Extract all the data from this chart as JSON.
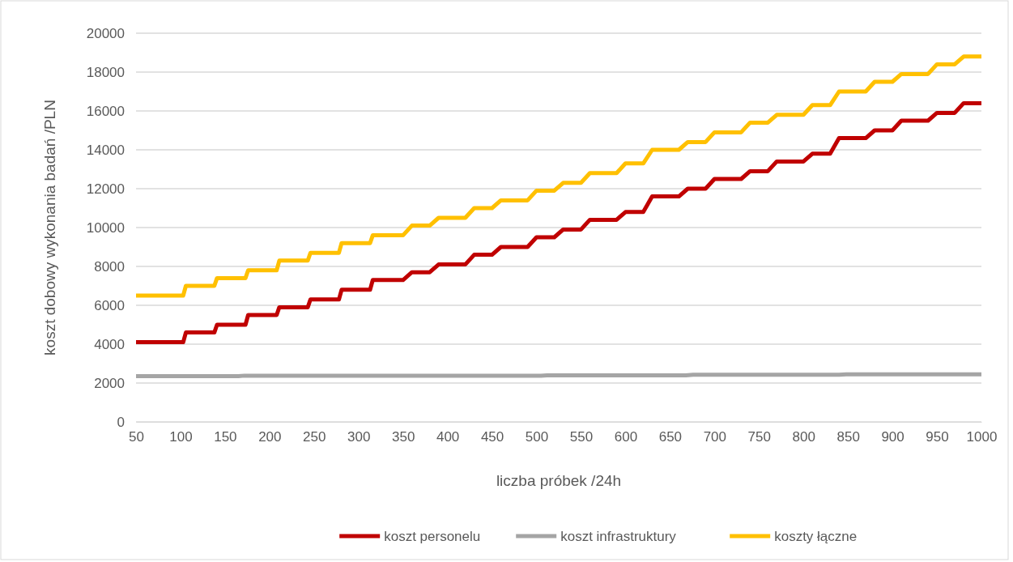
{
  "chart_data": {
    "type": "line",
    "xlabel": "liczba próbek /24h",
    "ylabel": "koszt dobowy wykonania badań /PLN",
    "xlim": [
      50,
      1000
    ],
    "xticks": [
      50,
      100,
      150,
      200,
      250,
      300,
      350,
      400,
      450,
      500,
      550,
      600,
      650,
      700,
      750,
      800,
      850,
      900,
      950,
      1000
    ],
    "ylim": [
      0,
      20000
    ],
    "yticks": [
      0,
      2000,
      4000,
      6000,
      8000,
      10000,
      12000,
      14000,
      16000,
      18000,
      20000
    ],
    "grid": "y",
    "legend": "bottom",
    "marker": "none",
    "line_style": "solid",
    "series": [
      {
        "name": "koszt personelu",
        "color": "#c00000",
        "x": [
          50,
          103,
          106,
          138,
          141,
          173,
          176,
          208,
          211,
          243,
          246,
          278,
          281,
          313,
          316,
          350,
          360,
          380,
          390,
          420,
          430,
          450,
          460,
          490,
          500,
          520,
          530,
          550,
          560,
          590,
          600,
          620,
          630,
          660,
          670,
          690,
          700,
          730,
          740,
          760,
          770,
          800,
          810,
          830,
          840,
          870,
          880,
          900,
          910,
          940,
          950,
          970,
          980,
          1000
        ],
        "values": [
          4100,
          4100,
          4600,
          4600,
          5000,
          5000,
          5500,
          5500,
          5900,
          5900,
          6300,
          6300,
          6800,
          6800,
          7300,
          7300,
          7700,
          7700,
          8100,
          8100,
          8600,
          8600,
          9000,
          9000,
          9500,
          9500,
          9900,
          9900,
          10400,
          10400,
          10800,
          10800,
          11600,
          11600,
          12000,
          12000,
          12500,
          12500,
          12900,
          12900,
          13400,
          13400,
          13800,
          13800,
          14600,
          14600,
          15000,
          15000,
          15500,
          15500,
          15900,
          15900,
          16400,
          16400
        ]
      },
      {
        "name": "koszt infrastruktury",
        "color": "#a5a5a5",
        "x": [
          50,
          165,
          172,
          505,
          512,
          668,
          676,
          840,
          848,
          1000
        ],
        "values": [
          2350,
          2350,
          2380,
          2380,
          2400,
          2400,
          2430,
          2430,
          2450,
          2450
        ]
      },
      {
        "name": "koszty łączne",
        "color": "#ffc000",
        "x": [
          50,
          103,
          106,
          138,
          141,
          173,
          176,
          208,
          211,
          243,
          246,
          278,
          281,
          313,
          316,
          350,
          360,
          380,
          390,
          420,
          430,
          450,
          460,
          490,
          500,
          520,
          530,
          550,
          560,
          590,
          600,
          620,
          630,
          660,
          670,
          690,
          700,
          730,
          740,
          760,
          770,
          800,
          810,
          830,
          840,
          870,
          880,
          900,
          910,
          940,
          950,
          970,
          980,
          1000
        ],
        "values": [
          6500,
          6500,
          7000,
          7000,
          7400,
          7400,
          7800,
          7800,
          8300,
          8300,
          8700,
          8700,
          9200,
          9200,
          9600,
          9600,
          10100,
          10100,
          10500,
          10500,
          11000,
          11000,
          11400,
          11400,
          11900,
          11900,
          12300,
          12300,
          12800,
          12800,
          13300,
          13300,
          14000,
          14000,
          14400,
          14400,
          14900,
          14900,
          15400,
          15400,
          15800,
          15800,
          16300,
          16300,
          17000,
          17000,
          17500,
          17500,
          17900,
          17900,
          18400,
          18400,
          18800,
          18800
        ]
      }
    ]
  }
}
